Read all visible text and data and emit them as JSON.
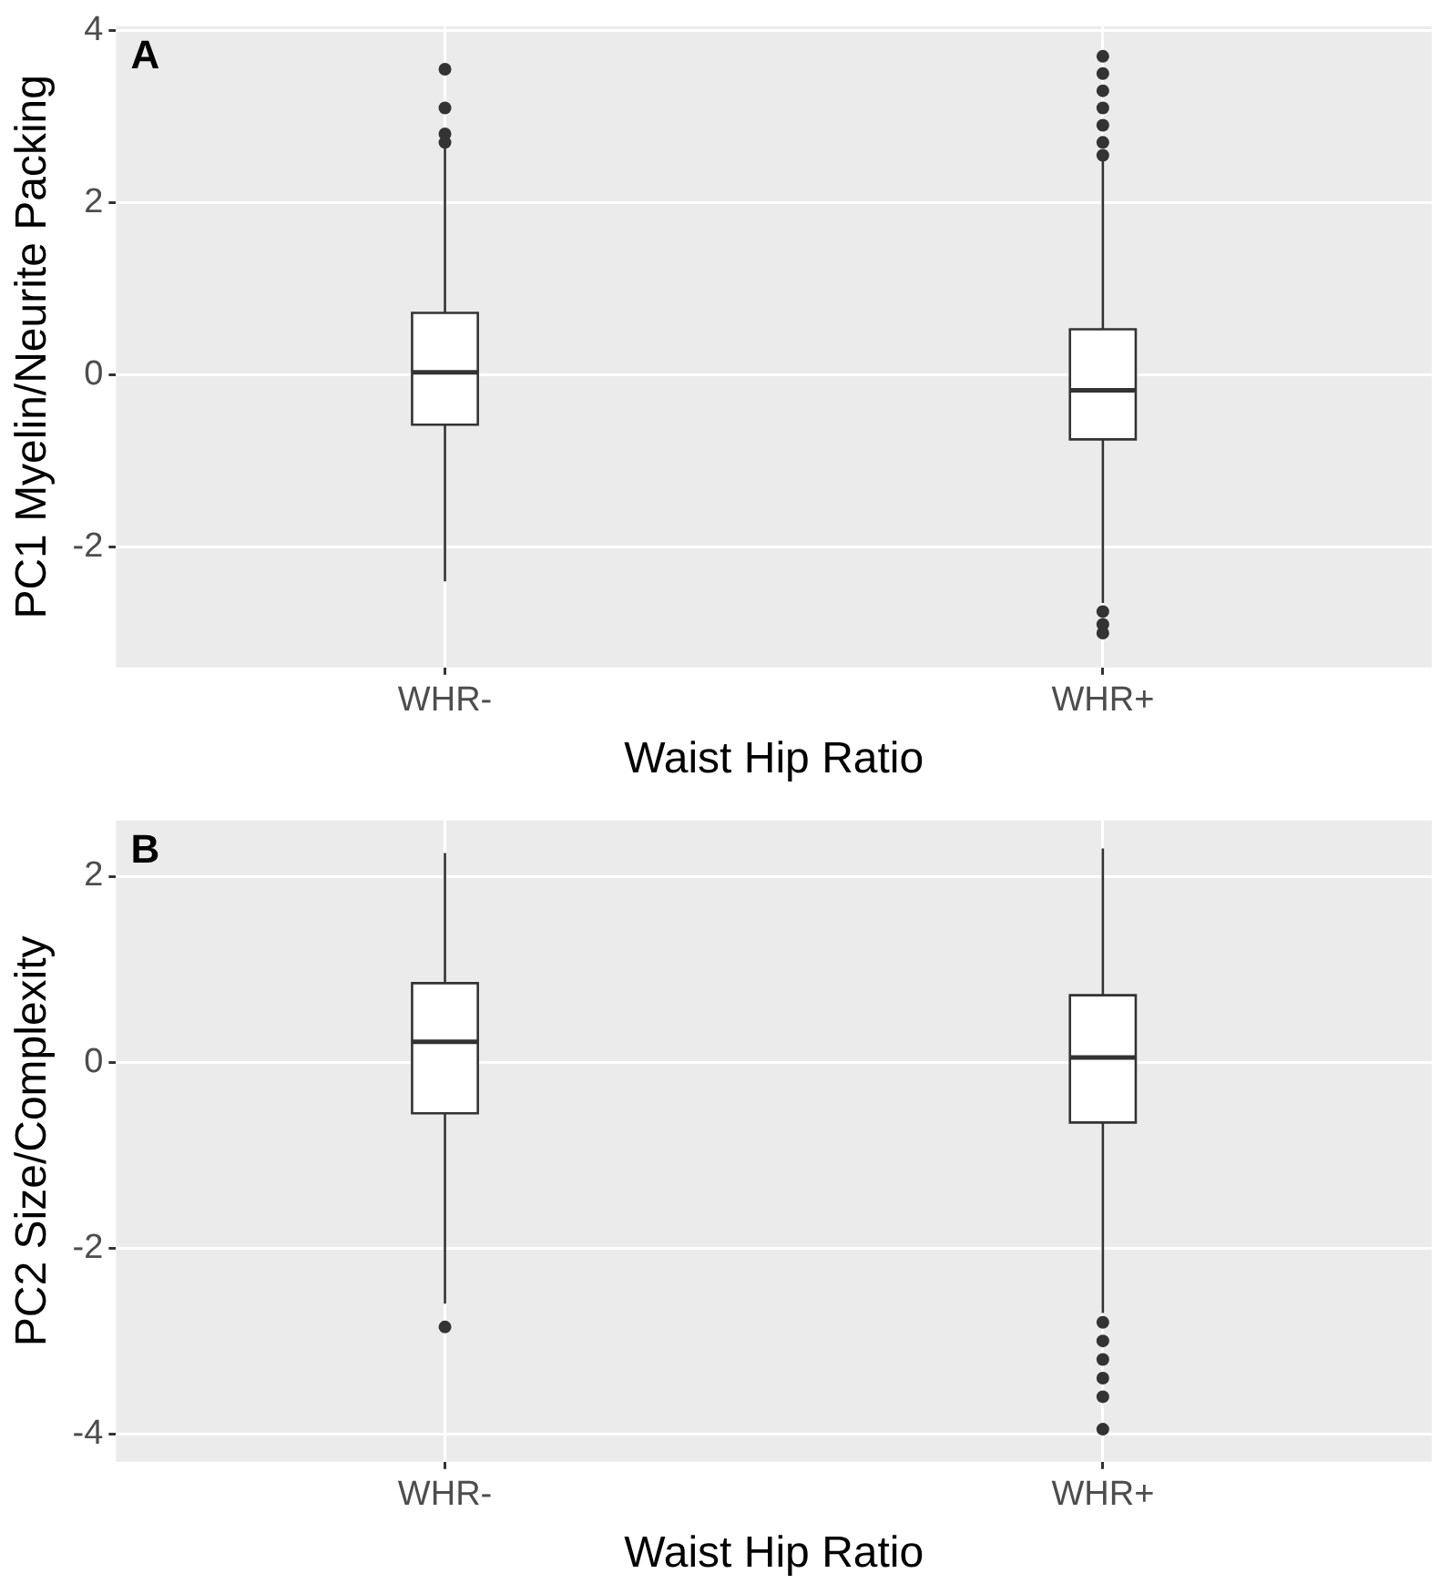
{
  "chart_data": [
    {
      "type": "box",
      "xlabel": "Waist Hip Ratio",
      "ylabel": "PC1 Myelin/Neurite Packing",
      "annotations": [
        "A"
      ],
      "categories": [
        "WHR-",
        "WHR+"
      ],
      "ylim": [
        -3.4,
        4.05
      ],
      "yticks": [
        -2,
        0,
        2,
        4
      ],
      "grid": true,
      "boxes": [
        {
          "low": -2.4,
          "q1": -0.58,
          "median": 0.03,
          "q3": 0.72,
          "high": 2.65,
          "outliers": [
            2.7,
            2.8,
            3.1,
            3.55
          ]
        },
        {
          "low": -2.65,
          "q1": -0.75,
          "median": -0.18,
          "q3": 0.53,
          "high": 2.5,
          "outliers": [
            2.55,
            2.7,
            2.9,
            3.1,
            3.3,
            3.5,
            3.7,
            -2.75,
            -2.9,
            -3.0
          ]
        }
      ]
    },
    {
      "type": "box",
      "xlabel": "Waist Hip Ratio",
      "ylabel": "PC2 Size/Complexity",
      "annotations": [
        "B"
      ],
      "categories": [
        "WHR-",
        "WHR+"
      ],
      "ylim": [
        -4.3,
        2.6
      ],
      "yticks": [
        -4,
        -2,
        0,
        2
      ],
      "grid": true,
      "boxes": [
        {
          "low": -2.6,
          "q1": -0.55,
          "median": 0.22,
          "q3": 0.85,
          "high": 2.25,
          "outliers": [
            -2.85
          ]
        },
        {
          "low": -2.7,
          "q1": -0.65,
          "median": 0.05,
          "q3": 0.72,
          "high": 2.3,
          "outliers": [
            -2.8,
            -3.0,
            -3.2,
            -3.4,
            -3.6,
            -3.95
          ]
        }
      ]
    }
  ]
}
